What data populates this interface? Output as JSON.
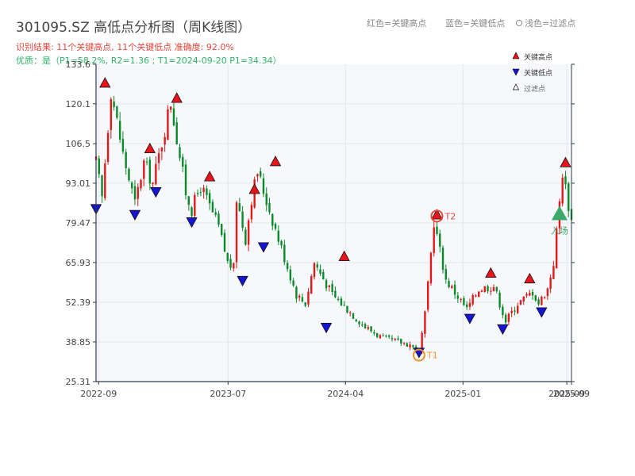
{
  "title": "301095.SZ 高低点分析图（周K线图）",
  "subtitle_result": "识别结果: 11个关键高点, 11个关键低点   准确度: 92.0%",
  "subtitle_quality": "优质：是（P1=58.2%, R2=1.36 ; T1=2024-09-20 P1=34.34）",
  "top_legend": {
    "red": "红色=关键高点",
    "blue": "蓝色=关键低点",
    "hollow": "浅色=过滤点"
  },
  "colors": {
    "up": "#e0191b",
    "down": "#0b8a2c",
    "high_marker": "#e8141a",
    "low_marker": "#1414d2",
    "entry": "#3aaa6a",
    "t1": "#f0922a",
    "t2": "#e34b3a",
    "axis": "#2d3a4a",
    "plot_bg": "#f6f8fb",
    "grid": "#e2e6ec"
  },
  "chart_data": {
    "type": "candlestick",
    "title": "301095.SZ 高低点分析图（周K线图）",
    "x_start": "2022-08-26",
    "x_end": "2025-09-12",
    "ylim": [
      25.31,
      133.6
    ],
    "yticks": [
      "25.31",
      "38.85",
      "52.39",
      "65.93",
      "79.47",
      "93.01",
      "106.5",
      "120.1",
      "133.6"
    ],
    "xticks": [
      {
        "date": "2022-09-01",
        "label": "2022-09"
      },
      {
        "date": "2023-07-01",
        "label": "2023-07"
      },
      {
        "date": "2024-04-01",
        "label": "2024-04"
      },
      {
        "date": "2025-01-01",
        "label": "2025-01"
      },
      {
        "date": "2025-09-01",
        "label": "2025-09"
      },
      {
        "date": "2025-09-12",
        "label": "2025-09"
      }
    ],
    "price_path": [
      [
        "2022-08-26",
        100
      ],
      [
        "2022-09-09",
        88
      ],
      [
        "2022-09-30",
        125
      ],
      [
        "2022-10-28",
        103
      ],
      [
        "2022-11-25",
        86
      ],
      [
        "2022-12-16",
        100
      ],
      [
        "2023-01-06",
        93
      ],
      [
        "2023-02-17",
        121
      ],
      [
        "2023-03-24",
        90
      ],
      [
        "2023-04-07",
        84
      ],
      [
        "2023-04-28",
        92
      ],
      [
        "2023-06-09",
        78
      ],
      [
        "2023-06-30",
        66
      ],
      [
        "2023-07-14",
        64
      ],
      [
        "2023-07-21",
        88
      ],
      [
        "2023-08-11",
        74
      ],
      [
        "2023-08-25",
        88
      ],
      [
        "2023-09-08",
        97
      ],
      [
        "2023-10-27",
        74
      ],
      [
        "2023-12-08",
        55
      ],
      [
        "2023-12-29",
        52
      ],
      [
        "2024-01-19",
        66
      ],
      [
        "2024-03-01",
        55
      ],
      [
        "2024-05-17",
        44
      ],
      [
        "2024-06-28",
        40
      ],
      [
        "2024-08-30",
        38
      ],
      [
        "2024-09-20",
        35
      ],
      [
        "2024-10-04",
        48
      ],
      [
        "2024-10-11",
        58
      ],
      [
        "2024-10-25",
        80
      ],
      [
        "2024-11-22",
        60
      ],
      [
        "2025-01-10",
        50
      ],
      [
        "2025-02-07",
        57
      ],
      [
        "2025-03-14",
        58
      ],
      [
        "2025-04-11",
        46
      ],
      [
        "2025-05-09",
        52
      ],
      [
        "2025-06-13",
        56
      ],
      [
        "2025-06-27",
        52
      ],
      [
        "2025-07-18",
        57
      ],
      [
        "2025-08-01",
        66
      ],
      [
        "2025-08-22",
        97
      ],
      [
        "2025-09-12",
        80
      ]
    ],
    "key_highs": [
      {
        "date": "2022-09-16",
        "price": 125.5
      },
      {
        "date": "2022-12-30",
        "price": 103.1
      },
      {
        "date": "2023-03-03",
        "price": 120.3
      },
      {
        "date": "2023-05-19",
        "price": 93.5
      },
      {
        "date": "2023-09-01",
        "price": 89.2
      },
      {
        "date": "2023-10-20",
        "price": 98.7
      },
      {
        "date": "2024-03-29",
        "price": 66.3
      },
      {
        "date": "2024-11-01",
        "price": 80.5
      },
      {
        "date": "2025-03-07",
        "price": 60.6
      },
      {
        "date": "2025-06-06",
        "price": 58.7
      },
      {
        "date": "2025-08-29",
        "price": 98.3
      }
    ],
    "key_lows": [
      {
        "date": "2022-08-26",
        "price": 86.0
      },
      {
        "date": "2022-11-25",
        "price": 84.0
      },
      {
        "date": "2023-01-13",
        "price": 91.8
      },
      {
        "date": "2023-04-07",
        "price": 81.5
      },
      {
        "date": "2023-08-04",
        "price": 61.5
      },
      {
        "date": "2023-09-22",
        "price": 73.0
      },
      {
        "date": "2024-02-16",
        "price": 45.5
      },
      {
        "date": "2024-09-20",
        "price": 37.0
      },
      {
        "date": "2025-01-17",
        "price": 48.6
      },
      {
        "date": "2025-04-04",
        "price": 45.0
      },
      {
        "date": "2025-07-04",
        "price": 50.8
      }
    ],
    "t1": {
      "date": "2024-09-20",
      "price": 34.34,
      "label": "T1"
    },
    "t2": {
      "date": "2024-11-01",
      "price": 81.8,
      "label": "T2"
    },
    "entry": {
      "date": "2025-08-15",
      "price": 81.5,
      "label": "入场"
    },
    "legend": {
      "high": "关键高点",
      "low": "关键低点",
      "filtered": "过滤点",
      "position": "top-right"
    },
    "grid": true
  }
}
